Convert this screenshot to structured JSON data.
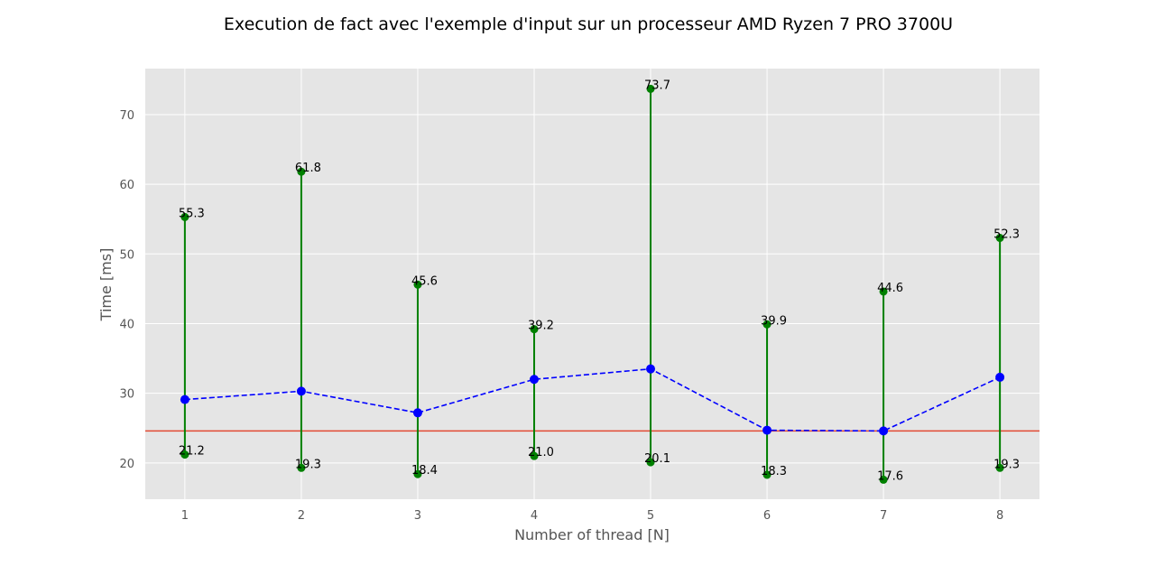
{
  "chart_data": {
    "type": "line",
    "title": "Execution de fact avec l'exemple d'input sur un processeur AMD Ryzen 7 PRO 3700U",
    "xlabel": "Number of thread [N]",
    "ylabel": "Time [ms]",
    "x": [
      1,
      2,
      3,
      4,
      5,
      6,
      7,
      8
    ],
    "x_tick_labels": [
      "1",
      "2",
      "3",
      "4",
      "5",
      "6",
      "7",
      "8"
    ],
    "y_tick_labels": [
      "20",
      "30",
      "40",
      "50",
      "60",
      "70"
    ],
    "xlim": [
      0.66,
      8.34
    ],
    "ylim": [
      14.8,
      76.6
    ],
    "grid": true,
    "mean_series": {
      "values": [
        29.1,
        30.3,
        27.2,
        32.0,
        33.5,
        24.7,
        24.6,
        32.3
      ],
      "color": "#0000ff",
      "style": "dashed",
      "marker": "circle"
    },
    "max_series": {
      "values": [
        55.3,
        61.8,
        45.6,
        39.2,
        73.7,
        39.9,
        44.6,
        52.3
      ],
      "labels": [
        "55.3",
        "61.8",
        "45.6",
        "39.2",
        "73.7",
        "39.9",
        "44.6",
        "52.3"
      ],
      "color": "#008000"
    },
    "min_series": {
      "values": [
        21.2,
        19.3,
        18.4,
        21.0,
        20.1,
        18.3,
        17.6,
        19.3
      ],
      "labels": [
        "21.2",
        "19.3",
        "18.4",
        "21.0",
        "20.1",
        "18.3",
        "17.6",
        "19.3"
      ],
      "color": "#008000"
    },
    "reference_line": {
      "value": 24.6,
      "color": "#e24a33"
    },
    "style": {
      "plot_background": "#e5e5e5",
      "grid_color": "#ffffff"
    }
  }
}
